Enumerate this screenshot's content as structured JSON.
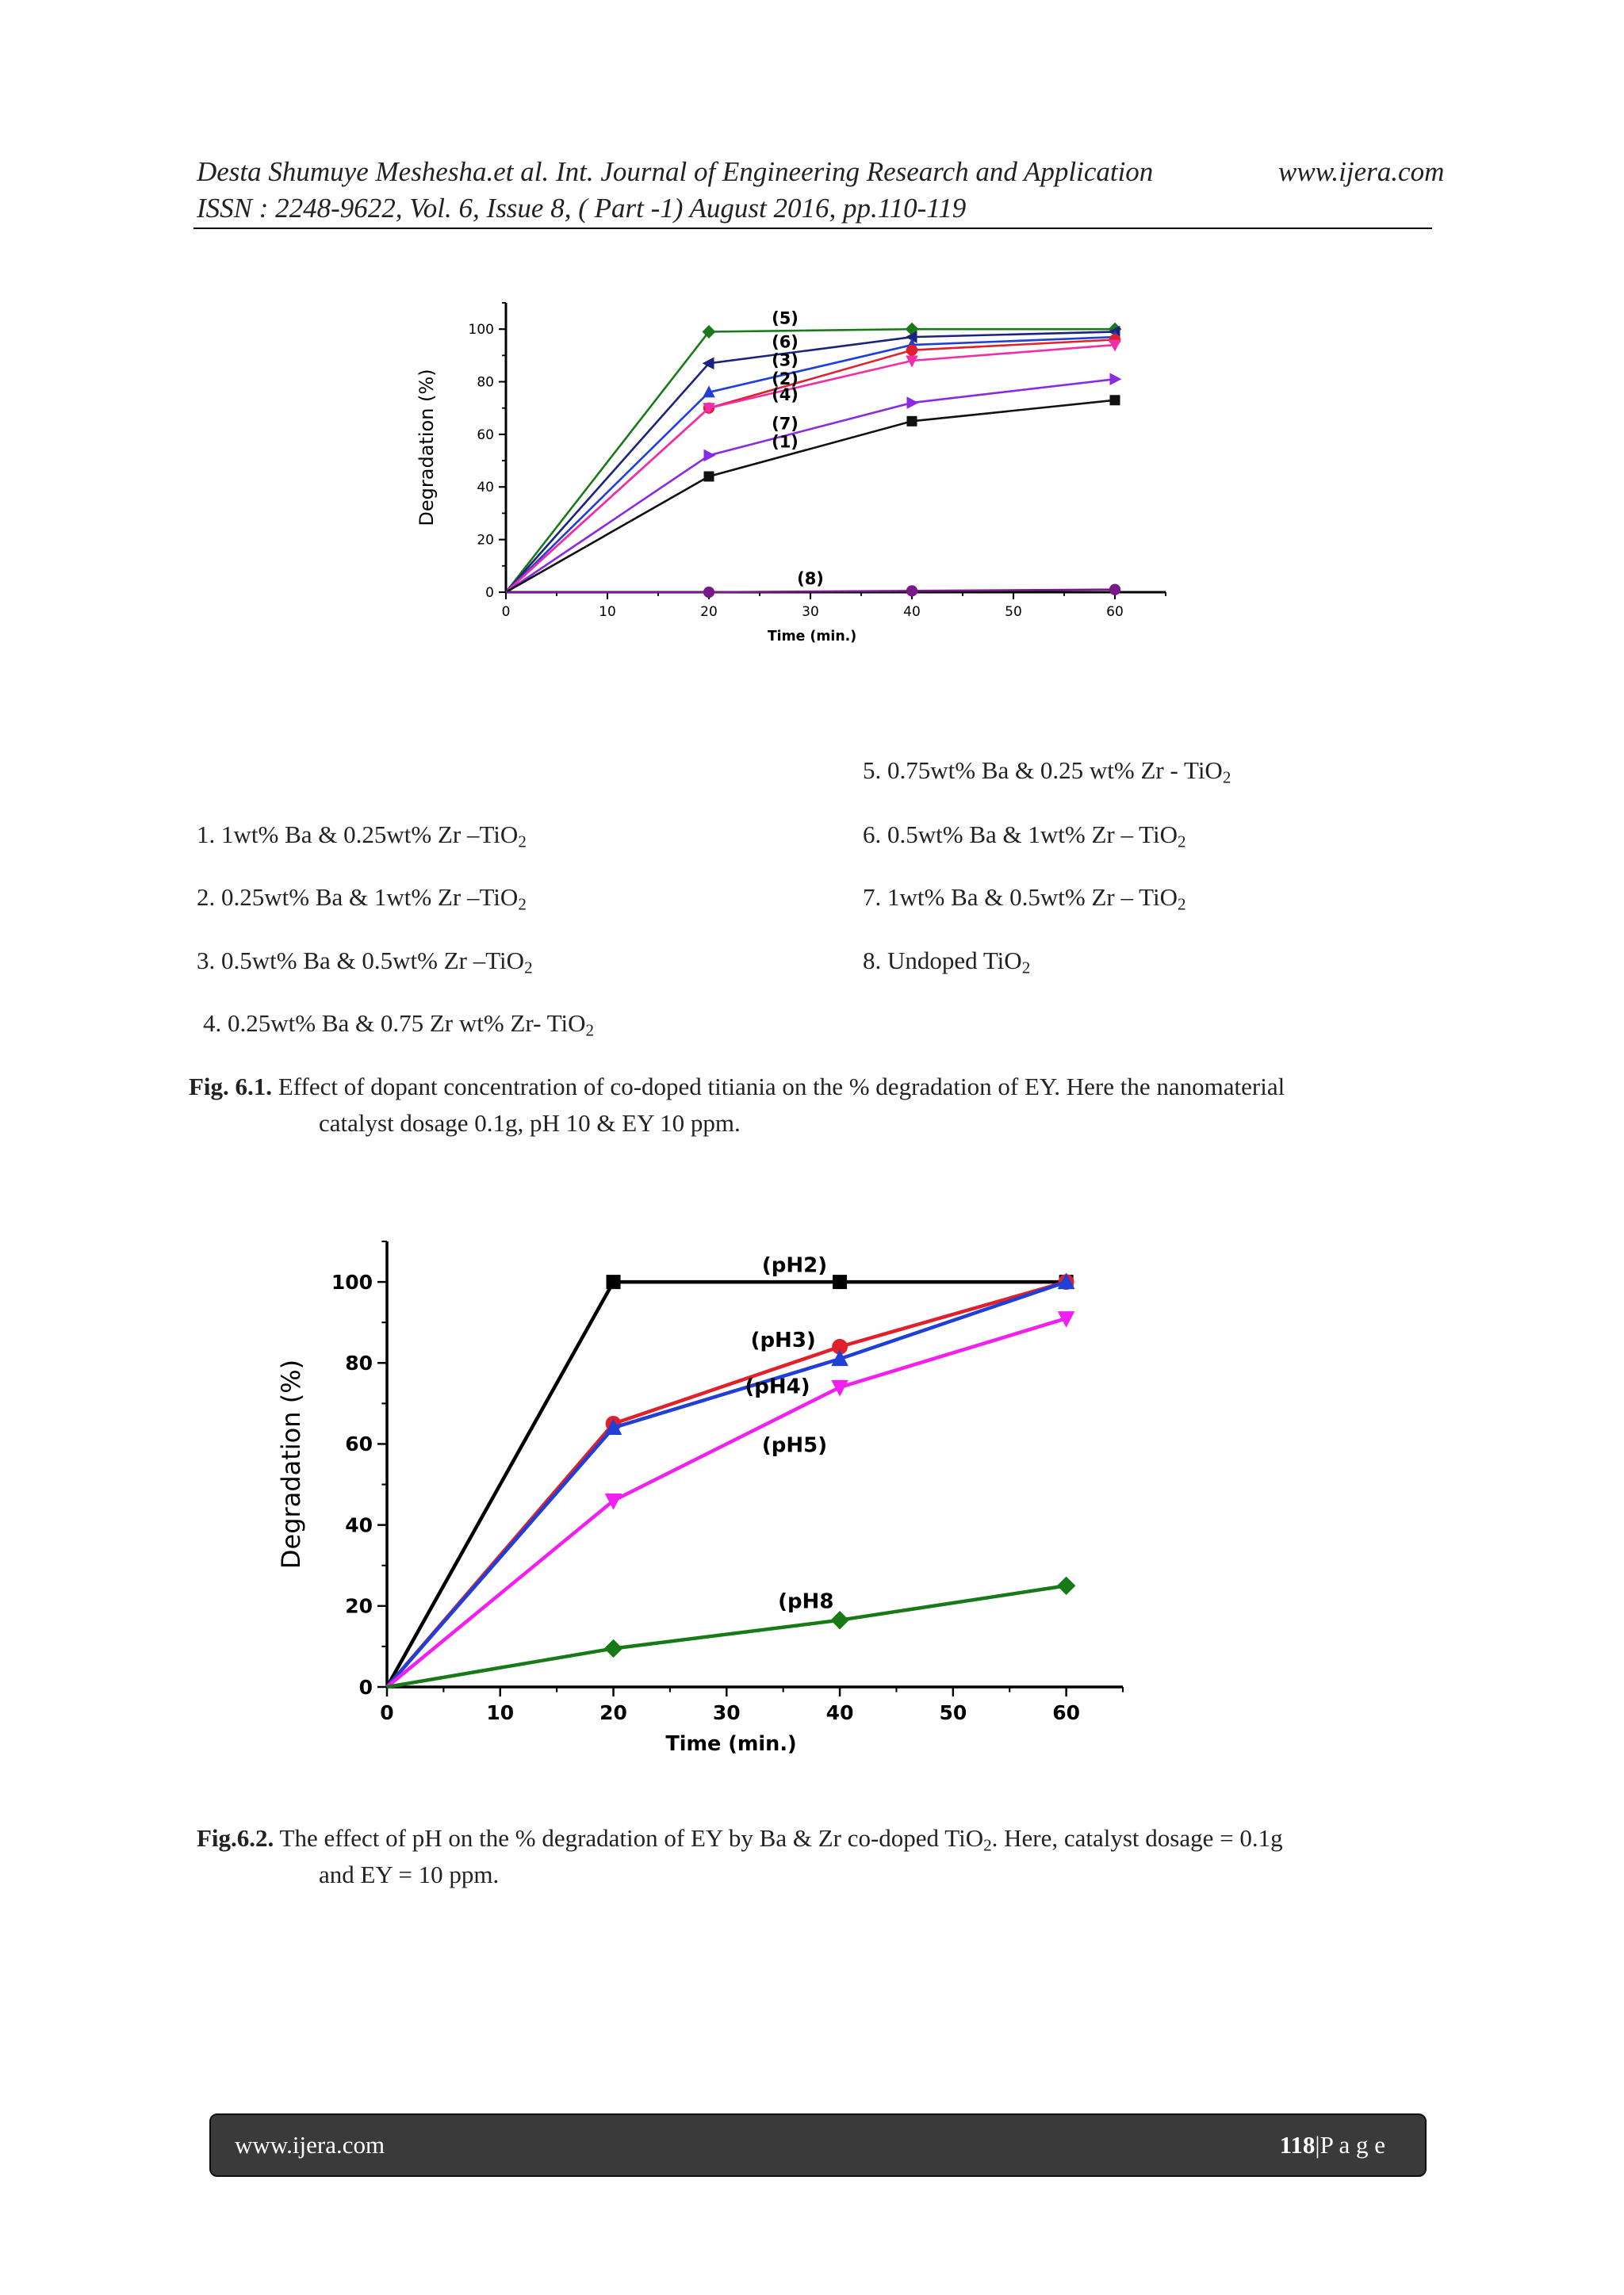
{
  "header": {
    "line1": "Desta Shumuye Meshesha.et al. Int. Journal of Engineering Research and Application",
    "url": "www.ijera.com",
    "line2": "ISSN : 2248-9622, Vol. 6, Issue 8, ( Part -1) August 2016, pp.110-119"
  },
  "fig1": {
    "chart_data": {
      "type": "line",
      "title": "",
      "xlabel": "Time (min.)",
      "ylabel": "Degradation (%)",
      "xlim": [
        0,
        65
      ],
      "ylim": [
        0,
        110
      ],
      "xticks": [
        0,
        10,
        20,
        30,
        40,
        50,
        60
      ],
      "yticks": [
        0,
        20,
        40,
        60,
        80,
        100
      ],
      "x": [
        0,
        20,
        40,
        60
      ],
      "series": [
        {
          "name": "(5)",
          "values": [
            0,
            99,
            100,
            100
          ],
          "color": "#1a7a1a",
          "marker": "diamond"
        },
        {
          "name": "(6)",
          "values": [
            0,
            87,
            97,
            99
          ],
          "color": "#1a237e",
          "marker": "triangle-left"
        },
        {
          "name": "(3)",
          "values": [
            0,
            76,
            94,
            97
          ],
          "color": "#1f3fd6",
          "marker": "triangle-up"
        },
        {
          "name": "(2)",
          "values": [
            0,
            70,
            92,
            96
          ],
          "color": "#e0202a",
          "marker": "circle"
        },
        {
          "name": "(4)",
          "values": [
            0,
            70,
            88,
            94
          ],
          "color": "#ef2ea8",
          "marker": "triangle-down"
        },
        {
          "name": "(7)",
          "values": [
            0,
            52,
            72,
            81
          ],
          "color": "#8a2be2",
          "marker": "triangle-right"
        },
        {
          "name": "(1)",
          "values": [
            0,
            44,
            65,
            73
          ],
          "color": "#111111",
          "marker": "square"
        },
        {
          "name": "(8)",
          "values": [
            0,
            0,
            0.5,
            1
          ],
          "color": "#7a1a8a",
          "marker": "circle"
        }
      ],
      "annotations": [
        {
          "text": "(5)",
          "x": 27.5,
          "y": 102
        },
        {
          "text": "(6)",
          "x": 27.5,
          "y": 93
        },
        {
          "text": "(3)",
          "x": 27.5,
          "y": 86
        },
        {
          "text": "(2)",
          "x": 27.5,
          "y": 79
        },
        {
          "text": "(4)",
          "x": 27.5,
          "y": 73
        },
        {
          "text": "(7)",
          "x": 27.5,
          "y": 62
        },
        {
          "text": "(1)",
          "x": 27.5,
          "y": 55
        },
        {
          "text": "(8)",
          "x": 30,
          "y": 3
        }
      ]
    },
    "legend": [
      {
        "num": "5.",
        "text": "0.75wt% Ba & 0.25 wt% Zr - TiO",
        "sub": "2"
      },
      {
        "num": "1.",
        "text": "1wt% Ba & 0.25wt% Zr –TiO",
        "sub": "2"
      },
      {
        "num": "6.",
        "text": "0.5wt% Ba & 1wt% Zr – TiO",
        "sub": "2"
      },
      {
        "num": "2.",
        "text": "0.25wt% Ba & 1wt% Zr –TiO",
        "sub": "2"
      },
      {
        "num": "7.",
        "text": "1wt% Ba & 0.5wt% Zr – TiO",
        "sub": "2"
      },
      {
        "num": "3.",
        "text": "0.5wt% Ba & 0.5wt% Zr –TiO",
        "sub": "2"
      },
      {
        "num": "8.",
        "text": " Undoped TiO",
        "sub": "2"
      },
      {
        "num": "4.",
        "text": "0.25wt% Ba & 0.75 Zr wt% Zr- TiO",
        "sub": "2"
      }
    ],
    "caption_label": "Fig. 6.1.",
    "caption_line1": " Effect of dopant concentration of co-doped titiania on the % degradation of EY. Here the nanomaterial",
    "caption_line2": "catalyst dosage 0.1g, pH 10 & EY 10 ppm."
  },
  "fig2": {
    "chart_data": {
      "type": "line",
      "title": "",
      "xlabel": "Time (min.)",
      "ylabel": "Degradation (%)",
      "xlim": [
        0,
        65
      ],
      "ylim": [
        0,
        110
      ],
      "xticks": [
        0,
        10,
        20,
        30,
        40,
        50,
        60
      ],
      "yticks": [
        0,
        20,
        40,
        60,
        80,
        100
      ],
      "x": [
        0,
        20,
        40,
        60
      ],
      "series": [
        {
          "name": "(pH2)",
          "values": [
            0,
            100,
            100,
            100
          ],
          "color": "#000000",
          "marker": "square"
        },
        {
          "name": "(pH3)",
          "values": [
            0,
            65,
            84,
            100
          ],
          "color": "#e0202a",
          "marker": "circle"
        },
        {
          "name": "(pH4)",
          "values": [
            0,
            64,
            81,
            100
          ],
          "color": "#1f3fd6",
          "marker": "triangle-up"
        },
        {
          "name": "(pH5)",
          "values": [
            0,
            46,
            74,
            91
          ],
          "color": "#f21ff0",
          "marker": "triangle-down"
        },
        {
          "name": "(pH8",
          "values": [
            0,
            9.5,
            16.5,
            25
          ],
          "color": "#177a17",
          "marker": "diamond"
        }
      ],
      "annotations": [
        {
          "text": "(pH2)",
          "x": 36,
          "y": 102.5
        },
        {
          "text": "(pH3)",
          "x": 35,
          "y": 84
        },
        {
          "text": "(pH4)",
          "x": 34.5,
          "y": 72.5
        },
        {
          "text": "(pH5)",
          "x": 36,
          "y": 58
        },
        {
          "text": "(pH8",
          "x": 37,
          "y": 19.5
        }
      ]
    },
    "caption_label": "Fig.6.2.",
    "caption_line1a": " The effect of pH on the % degradation of EY by Ba & Zr co-doped TiO",
    "caption_sub": "2",
    "caption_line1b": ". Here, catalyst dosage = 0.1g",
    "caption_line2": "and EY = 10 ppm."
  },
  "footer": {
    "url": "www.ijera.com",
    "page_num": "118",
    "page_label": "|P a g e"
  }
}
